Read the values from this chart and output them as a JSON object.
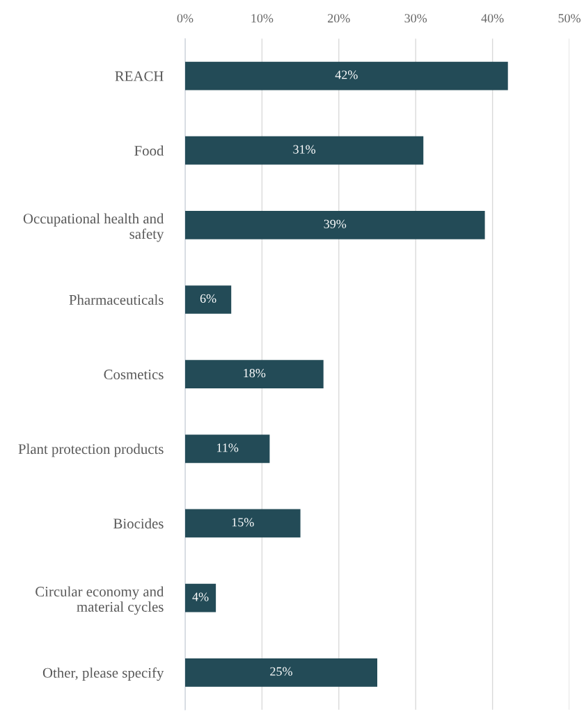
{
  "chart_data": {
    "type": "bar",
    "orientation": "horizontal",
    "categories": [
      "REACH",
      "Food",
      "Occupational health and\nsafety",
      "Pharmaceuticals",
      "Cosmetics",
      "Plant protection products",
      "Biocides",
      "Circular economy and\nmaterial cycles",
      "Other, please specify"
    ],
    "values": [
      42,
      31,
      39,
      6,
      18,
      11,
      15,
      4,
      25
    ],
    "value_labels": [
      "42%",
      "31%",
      "39%",
      "6%",
      "18%",
      "11%",
      "15%",
      "4%",
      "25%"
    ],
    "color": "#234b57",
    "xlim": [
      0,
      50
    ],
    "xticks": [
      {
        "value": 0,
        "label": "0%"
      },
      {
        "value": 10,
        "label": "10%"
      },
      {
        "value": 20,
        "label": "20%"
      },
      {
        "value": 30,
        "label": "30%"
      },
      {
        "value": 40,
        "label": "40%"
      },
      {
        "value": 50,
        "label": "50%"
      }
    ],
    "grid": "x",
    "legend": false
  }
}
